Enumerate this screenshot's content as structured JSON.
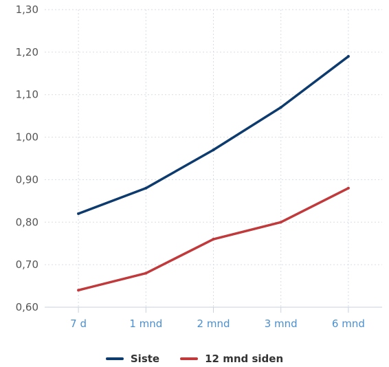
{
  "chart_data": {
    "type": "line",
    "title": "",
    "xlabel": "",
    "ylabel": "",
    "categories": [
      "7 d",
      "1 mnd",
      "2 mnd",
      "3 mnd",
      "6 mnd"
    ],
    "ylim": [
      0.6,
      1.3
    ],
    "yticks": [
      "0,60",
      "0,70",
      "0,80",
      "0,90",
      "1,00",
      "1,10",
      "1,20",
      "1,30"
    ],
    "ytick_values": [
      0.6,
      0.7,
      0.8,
      0.9,
      1.0,
      1.1,
      1.2,
      1.3
    ],
    "grid": true,
    "legend_position": "bottom-center",
    "series": [
      {
        "name": "Siste",
        "color": "#0d3b6e",
        "values": [
          0.82,
          0.88,
          0.97,
          1.07,
          1.19
        ]
      },
      {
        "name": "12 mnd siden",
        "color": "#c0393b",
        "values": [
          0.64,
          0.68,
          0.76,
          0.8,
          0.88
        ]
      }
    ]
  }
}
